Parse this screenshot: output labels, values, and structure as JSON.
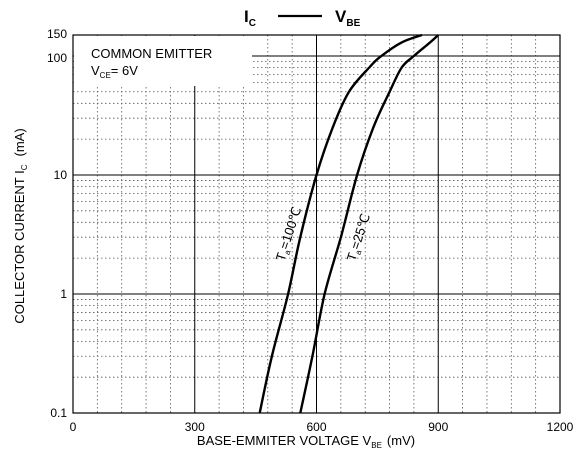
{
  "chart_data": {
    "type": "line",
    "title": {
      "y_symbol": "I",
      "y_sub": "C",
      "x_symbol": "V",
      "x_sub": "BE"
    },
    "xlabel": {
      "text": "BASE-EMMITER VOLTAGE  V",
      "sub": "BE",
      "unit": "(mV)"
    },
    "ylabel": {
      "text": "COLLECTOR CURRENT   I",
      "sub": "C",
      "unit": "(mA)"
    },
    "xlim": [
      0,
      1200
    ],
    "ylim": [
      0.1,
      150
    ],
    "yscale": "log",
    "x_ticks": [
      {
        "value": 0,
        "label": "0"
      },
      {
        "value": 300,
        "label": "300"
      },
      {
        "value": 600,
        "label": "600"
      },
      {
        "value": 900,
        "label": "900"
      },
      {
        "value": 1200,
        "label": "1200"
      }
    ],
    "y_ticks": [
      {
        "value": 0.1,
        "label": "0.1"
      },
      {
        "value": 1,
        "label": "1"
      },
      {
        "value": 10,
        "label": "10"
      },
      {
        "value": 100,
        "label": "100"
      },
      {
        "value": 150,
        "label": "150"
      }
    ],
    "grid": true,
    "annotation": {
      "line1": "COMMON EMITTER",
      "line2_prefix": "V",
      "line2_sub": "CE",
      "line2_suffix": "= 6V"
    },
    "series": [
      {
        "label_prefix": "T",
        "label_sub": "a",
        "label_suffix": "=100℃",
        "x": [
          460,
          490,
          530,
          560,
          600,
          640,
          680,
          730,
          760,
          810,
          860
        ],
        "y": [
          0.1,
          0.3,
          1,
          3,
          10,
          25,
          50,
          80,
          100,
          130,
          150
        ]
      },
      {
        "label_prefix": "T",
        "label_sub": "a",
        "label_suffix": "=25℃",
        "x": [
          560,
          590,
          620,
          660,
          700,
          740,
          780,
          810,
          840,
          880,
          900
        ],
        "y": [
          0.1,
          0.3,
          1,
          3,
          10,
          25,
          50,
          80,
          100,
          130,
          150
        ]
      }
    ]
  }
}
